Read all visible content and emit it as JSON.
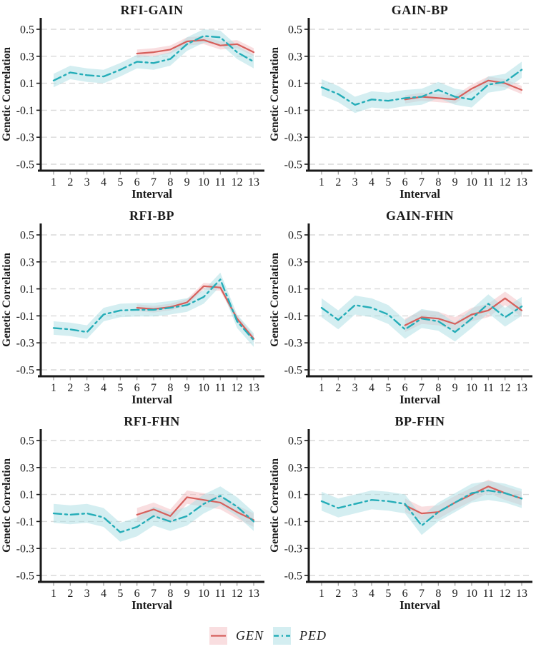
{
  "style": {
    "background": "#ffffff",
    "grid_color": "#d9d9d9",
    "axis_color": "#1a1a1a",
    "tick_color": "#9a9a9a",
    "text_color": "#1a1a1a"
  },
  "legend": {
    "items": [
      {
        "label": "GEN",
        "line_color": "#d6605c",
        "ribbon_color": "#f2b6ba",
        "ribbon_opacity": 0.45,
        "line_width": 2.2,
        "dash": "solid"
      },
      {
        "label": "PED",
        "line_color": "#25adb8",
        "ribbon_color": "#a9dde4",
        "ribbon_opacity": 0.5,
        "line_width": 2.4,
        "dash": "dashdot"
      }
    ]
  },
  "axes": {
    "ylabel": "Genetic Correlation",
    "xlabel": "Interval",
    "yticks": [
      0.5,
      0.3,
      0.1,
      -0.1,
      -0.3,
      -0.5
    ],
    "ytick_labels": [
      "0.5",
      "0.3",
      "0.1",
      "-0.1",
      "-0.3",
      "-0.5"
    ],
    "xticks": [
      1,
      2,
      3,
      4,
      5,
      6,
      7,
      8,
      9,
      10,
      11,
      12,
      13
    ],
    "ylim": [
      -0.54,
      0.585
    ],
    "grid": "dashed-horizontal",
    "legend_position": "bottom-center"
  },
  "chart_data": [
    {
      "type": "line",
      "title": "RFI-GAIN",
      "x": [
        1,
        2,
        3,
        4,
        5,
        6,
        7,
        8,
        9,
        10,
        11,
        12,
        13
      ],
      "series": [
        {
          "name": "GEN",
          "x_start": 6,
          "values": [
            0.32,
            0.33,
            0.35,
            0.41,
            0.42,
            0.38,
            0.39,
            0.33
          ],
          "band": 0.03
        },
        {
          "name": "PED",
          "x_start": 1,
          "values": [
            0.12,
            0.18,
            0.16,
            0.15,
            0.2,
            0.26,
            0.25,
            0.28,
            0.39,
            0.45,
            0.44,
            0.33,
            0.26
          ],
          "band": 0.05
        }
      ]
    },
    {
      "type": "line",
      "title": "GAIN-BP",
      "x": [
        1,
        2,
        3,
        4,
        5,
        6,
        7,
        8,
        9,
        10,
        11,
        12,
        13
      ],
      "series": [
        {
          "name": "GEN",
          "x_start": 6,
          "values": [
            -0.02,
            0.0,
            -0.01,
            -0.02,
            0.06,
            0.12,
            0.1,
            0.05
          ],
          "band": 0.03
        },
        {
          "name": "PED",
          "x_start": 1,
          "values": [
            0.07,
            0.02,
            -0.06,
            -0.02,
            -0.03,
            -0.01,
            0.0,
            0.05,
            0.0,
            -0.02,
            0.09,
            0.11,
            0.2
          ],
          "band": 0.06
        }
      ]
    },
    {
      "type": "line",
      "title": "RFI-BP",
      "x": [
        1,
        2,
        3,
        4,
        5,
        6,
        7,
        8,
        9,
        10,
        11,
        12,
        13
      ],
      "series": [
        {
          "name": "GEN",
          "x_start": 6,
          "values": [
            -0.04,
            -0.05,
            -0.035,
            0.0,
            0.12,
            0.11,
            -0.12,
            -0.27
          ],
          "band": 0.025
        },
        {
          "name": "PED",
          "x_start": 1,
          "values": [
            -0.19,
            -0.2,
            -0.22,
            -0.09,
            -0.06,
            -0.055,
            -0.055,
            -0.04,
            -0.02,
            0.04,
            0.17,
            -0.14,
            -0.28
          ],
          "band": 0.05
        }
      ]
    },
    {
      "type": "line",
      "title": "GAIN-FHN",
      "x": [
        1,
        2,
        3,
        4,
        5,
        6,
        7,
        8,
        9,
        10,
        11,
        12,
        13
      ],
      "series": [
        {
          "name": "GEN",
          "x_start": 6,
          "values": [
            -0.17,
            -0.11,
            -0.12,
            -0.16,
            -0.09,
            -0.06,
            0.03,
            -0.06
          ],
          "band": 0.05
        },
        {
          "name": "PED",
          "x_start": 1,
          "values": [
            -0.04,
            -0.13,
            -0.02,
            -0.04,
            -0.09,
            -0.2,
            -0.12,
            -0.14,
            -0.22,
            -0.12,
            -0.01,
            -0.11,
            -0.03
          ],
          "band": 0.07
        }
      ]
    },
    {
      "type": "line",
      "title": "RFI-FHN",
      "x": [
        1,
        2,
        3,
        4,
        5,
        6,
        7,
        8,
        9,
        10,
        11,
        12,
        13
      ],
      "series": [
        {
          "name": "GEN",
          "x_start": 6,
          "values": [
            -0.05,
            -0.01,
            -0.06,
            0.08,
            0.06,
            0.04,
            -0.03,
            -0.09
          ],
          "band": 0.05
        },
        {
          "name": "PED",
          "x_start": 1,
          "values": [
            -0.04,
            -0.05,
            -0.04,
            -0.07,
            -0.18,
            -0.14,
            -0.06,
            -0.1,
            -0.06,
            0.03,
            0.09,
            0.01,
            -0.1
          ],
          "band": 0.07
        }
      ]
    },
    {
      "type": "line",
      "title": "BP-FHN",
      "x": [
        1,
        2,
        3,
        4,
        5,
        6,
        7,
        8,
        9,
        10,
        11,
        12,
        13
      ],
      "series": [
        {
          "name": "GEN",
          "x_start": 6,
          "values": [
            0.02,
            -0.04,
            -0.03,
            0.04,
            0.1,
            0.16,
            0.11,
            0.07
          ],
          "band": 0.05
        },
        {
          "name": "PED",
          "x_start": 1,
          "values": [
            0.05,
            0.0,
            0.03,
            0.06,
            0.05,
            0.03,
            -0.13,
            -0.03,
            0.04,
            0.11,
            0.13,
            0.11,
            0.07
          ],
          "band": 0.07
        }
      ]
    }
  ]
}
